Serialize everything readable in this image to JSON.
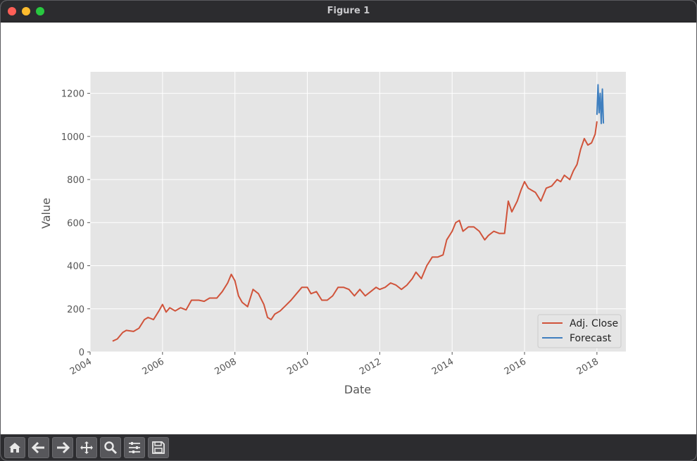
{
  "window": {
    "title": "Figure 1"
  },
  "toolbar": {
    "buttons": [
      {
        "icon": "home-icon"
      },
      {
        "icon": "back-icon"
      },
      {
        "icon": "forward-icon"
      },
      {
        "icon": "pan-icon"
      },
      {
        "icon": "zoom-icon"
      },
      {
        "icon": "configure-subplots-icon"
      },
      {
        "icon": "save-icon"
      }
    ]
  },
  "colors": {
    "adj_close": "#d0533a",
    "forecast": "#3f7fbf",
    "axes_bg": "#e5e5e5",
    "grid": "#ffffff"
  },
  "chart_data": {
    "type": "line",
    "title": "",
    "xlabel": "Date",
    "ylabel": "Value",
    "xlim": [
      2004.0,
      2018.8
    ],
    "ylim": [
      0,
      1300
    ],
    "x_ticks": [
      2004,
      2006,
      2008,
      2010,
      2012,
      2014,
      2016,
      2018
    ],
    "x_tick_labels": [
      "2004",
      "2006",
      "2008",
      "2010",
      "2012",
      "2014",
      "2016",
      "2018"
    ],
    "y_ticks": [
      0,
      200,
      400,
      600,
      800,
      1000,
      1200
    ],
    "y_tick_labels": [
      "0",
      "200",
      "400",
      "600",
      "800",
      "1000",
      "1200"
    ],
    "grid": true,
    "legend_position": "lower-right",
    "series": [
      {
        "name": "Adj. Close",
        "x": [
          2004.62,
          2004.75,
          2004.9,
          2005.0,
          2005.2,
          2005.35,
          2005.5,
          2005.6,
          2005.75,
          2005.9,
          2006.0,
          2006.1,
          2006.2,
          2006.35,
          2006.5,
          2006.65,
          2006.8,
          2007.0,
          2007.15,
          2007.3,
          2007.5,
          2007.65,
          2007.8,
          2007.9,
          2008.0,
          2008.1,
          2008.2,
          2008.35,
          2008.5,
          2008.65,
          2008.8,
          2008.9,
          2009.0,
          2009.1,
          2009.25,
          2009.4,
          2009.55,
          2009.7,
          2009.85,
          2010.0,
          2010.1,
          2010.25,
          2010.4,
          2010.55,
          2010.7,
          2010.85,
          2011.0,
          2011.15,
          2011.3,
          2011.45,
          2011.6,
          2011.75,
          2011.9,
          2012.0,
          2012.15,
          2012.3,
          2012.45,
          2012.6,
          2012.75,
          2012.9,
          2013.0,
          2013.15,
          2013.3,
          2013.45,
          2013.6,
          2013.75,
          2013.85,
          2014.0,
          2014.1,
          2014.2,
          2014.3,
          2014.45,
          2014.6,
          2014.75,
          2014.9,
          2015.0,
          2015.15,
          2015.3,
          2015.45,
          2015.55,
          2015.65,
          2015.8,
          2015.9,
          2016.0,
          2016.1,
          2016.2,
          2016.3,
          2016.45,
          2016.6,
          2016.75,
          2016.9,
          2017.0,
          2017.1,
          2017.25,
          2017.35,
          2017.45,
          2017.55,
          2017.65,
          2017.75,
          2017.85,
          2017.95,
          2018.0
        ],
        "values": [
          50,
          60,
          90,
          100,
          95,
          110,
          150,
          160,
          150,
          190,
          220,
          185,
          205,
          190,
          205,
          195,
          240,
          240,
          235,
          250,
          250,
          280,
          320,
          360,
          330,
          260,
          230,
          210,
          290,
          270,
          220,
          160,
          150,
          175,
          190,
          215,
          240,
          270,
          300,
          300,
          270,
          280,
          240,
          240,
          260,
          300,
          300,
          290,
          260,
          290,
          260,
          280,
          300,
          290,
          300,
          320,
          310,
          290,
          310,
          340,
          370,
          340,
          400,
          440,
          440,
          450,
          520,
          560,
          600,
          610,
          560,
          580,
          580,
          560,
          520,
          540,
          560,
          550,
          550,
          700,
          650,
          700,
          750,
          790,
          760,
          750,
          740,
          700,
          760,
          770,
          800,
          790,
          820,
          800,
          840,
          870,
          940,
          990,
          960,
          970,
          1010,
          1070
        ]
      },
      {
        "name": "Forecast",
        "x": [
          2018.0,
          2018.03,
          2018.06,
          2018.09,
          2018.12,
          2018.15,
          2018.18
        ],
        "values": [
          1100,
          1240,
          1110,
          1200,
          1060,
          1220,
          1060
        ]
      }
    ]
  }
}
